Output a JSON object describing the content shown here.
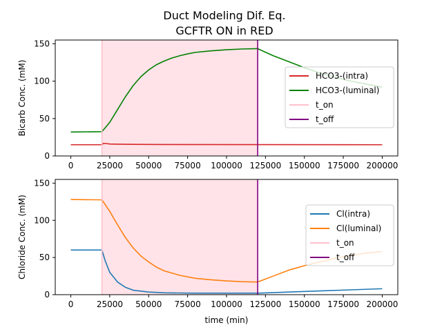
{
  "chart_data": {
    "title": "Duct Modeling Dif. Eq.",
    "subtitle": "GCFTR ON in RED",
    "xlabel": "time (min)",
    "xlim": [
      -10000,
      210000
    ],
    "xticks": [
      0,
      25000,
      50000,
      75000,
      100000,
      125000,
      150000,
      175000,
      200000
    ],
    "shaded_region": {
      "x_start": 20000,
      "x_end": 120000,
      "color": "#ffc0cb"
    },
    "charts": [
      {
        "type": "line",
        "ylabel": "Bicarb Conc. (mM)",
        "ylim": [
          0,
          155
        ],
        "yticks": [
          0,
          50,
          100,
          150
        ],
        "legend_position": "center-right",
        "series": [
          {
            "name": "HCO3-(intra)",
            "color": "#d62728",
            "x": [
              0,
              20000,
              21000,
              23000,
              25000,
              30000,
              40000,
              60000,
              120000,
              200000
            ],
            "y": [
              15,
              15,
              16.8,
              16.5,
              16,
              15.7,
              15.5,
              15.3,
              15.2,
              15
            ]
          },
          {
            "name": "HCO3-(luminal)",
            "color": "#008000",
            "x": [
              0,
              20000,
              25000,
              30000,
              35000,
              40000,
              45000,
              50000,
              55000,
              60000,
              65000,
              70000,
              75000,
              80000,
              90000,
              100000,
              110000,
              120000,
              130000,
              140000,
              150000,
              160000,
              170000,
              180000,
              190000,
              200000
            ],
            "y": [
              32,
              32.5,
              45,
              62,
              79,
              94,
              106,
              115,
              122,
              127,
              131,
              134,
              136.5,
              138.5,
              140.5,
              142,
              143,
              143.5,
              134,
              126,
              118,
              111,
              105,
              100,
              96,
              92
            ]
          },
          {
            "name": "t_on",
            "color": "#ffc0cb",
            "vline": 20000
          },
          {
            "name": "t_off",
            "color": "#800080",
            "vline": 120000
          }
        ]
      },
      {
        "type": "line",
        "ylabel": "Chloride Conc. (mM)",
        "ylim": [
          0,
          155
        ],
        "yticks": [
          0,
          50,
          100,
          150
        ],
        "legend_position": "center-right",
        "series": [
          {
            "name": "Cl(intra)",
            "color": "#1f77b4",
            "x": [
              0,
              20000,
              22000,
              25000,
              30000,
              35000,
              40000,
              50000,
              60000,
              80000,
              100000,
              120000,
              140000,
              160000,
              180000,
              200000
            ],
            "y": [
              60,
              60,
              46,
              30,
              17,
              10,
              6,
              3.5,
              2.5,
              2,
              2,
              2,
              3.5,
              5,
              6.5,
              8
            ]
          },
          {
            "name": "Cl(luminal)",
            "color": "#ff7f0e",
            "x": [
              0,
              20000,
              25000,
              30000,
              35000,
              40000,
              45000,
              50000,
              55000,
              60000,
              70000,
              80000,
              90000,
              100000,
              110000,
              120000,
              130000,
              140000,
              150000,
              160000,
              170000,
              180000,
              190000,
              200000
            ],
            "y": [
              128,
              127.5,
              112,
              94,
              77,
              63,
              52,
              44,
              37,
              32,
              26,
              22,
              20,
              18.5,
              17.5,
              17,
              25,
              33,
              39,
              44,
              49,
              53,
              56,
              58
            ]
          },
          {
            "name": "t_on",
            "color": "#ffc0cb",
            "vline": 20000
          },
          {
            "name": "t_off",
            "color": "#800080",
            "vline": 120000
          }
        ]
      }
    ]
  }
}
